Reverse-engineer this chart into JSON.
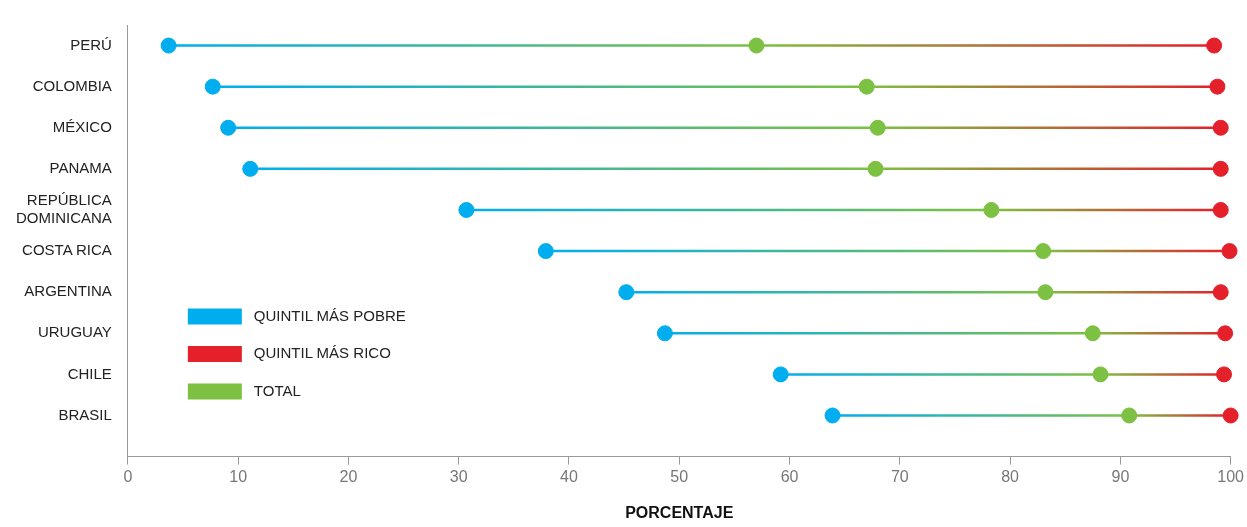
{
  "chart_data": {
    "type": "scatter",
    "xlabel": "PORCENTAJE",
    "categories": [
      "PERÚ",
      "COLOMBIA",
      "MÉXICO",
      "PANAMA",
      "REPÚBLICA DOMINICANA",
      "COSTA RICA",
      "ARGENTINA",
      "URUGUAY",
      "CHILE",
      "BRASIL"
    ],
    "series": [
      {
        "name": "QUINTIL MÁS POBRE",
        "color": "#00aeef",
        "values": [
          3.7,
          7.7,
          9.1,
          11.1,
          30.7,
          37.9,
          45.2,
          48.7,
          59.2,
          63.9
        ]
      },
      {
        "name": "QUINTIL MÁS RICO",
        "color": "#e4202a",
        "values": [
          98.5,
          98.8,
          99.1,
          99.1,
          99.1,
          99.9,
          99.1,
          99.5,
          99.4,
          100
        ]
      },
      {
        "name": "TOTAL",
        "color": "#7dc142",
        "values": [
          57.0,
          67.0,
          68.0,
          67.8,
          78.3,
          83.0,
          83.2,
          87.5,
          88.2,
          90.8
        ]
      }
    ],
    "orientation": "horizontal",
    "xlim": [
      0,
      100
    ],
    "xticks": [
      0,
      10,
      20,
      30,
      40,
      50,
      60,
      70,
      80,
      90,
      100
    ],
    "grid": false,
    "legend": "bottom left",
    "marker": "circle"
  }
}
